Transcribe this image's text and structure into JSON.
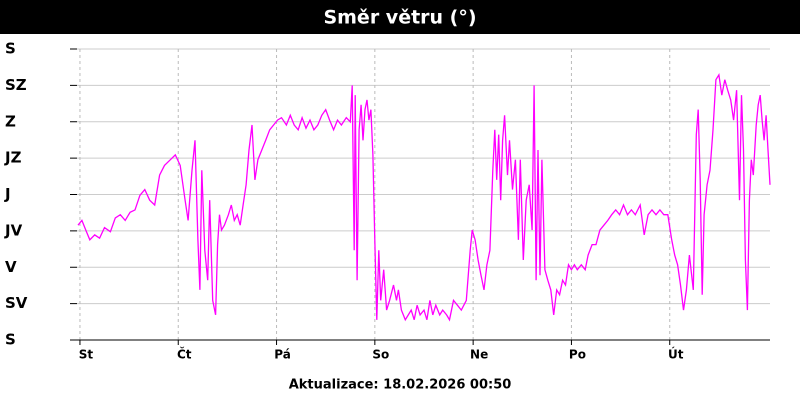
{
  "chart_data": {
    "type": "line",
    "title": "Směr větru (°)",
    "footer": "Aktualizace: 18.02.2026 00:50",
    "xlim": [
      -0.03,
      7.02
    ],
    "xticks": [
      {
        "value": 0,
        "label": "St"
      },
      {
        "value": 1,
        "label": "Čt"
      },
      {
        "value": 2,
        "label": "Pá"
      },
      {
        "value": 3,
        "label": "So"
      },
      {
        "value": 4,
        "label": "Ne"
      },
      {
        "value": 5,
        "label": "Po"
      },
      {
        "value": 6,
        "label": "Út"
      }
    ],
    "ylim": [
      0,
      360
    ],
    "yticks": [
      {
        "value": 0,
        "label": "S"
      },
      {
        "value": 45,
        "label": "SV"
      },
      {
        "value": 90,
        "label": "V"
      },
      {
        "value": 135,
        "label": "JV"
      },
      {
        "value": 180,
        "label": "J"
      },
      {
        "value": 225,
        "label": "JZ"
      },
      {
        "value": 270,
        "label": "Z"
      },
      {
        "value": 315,
        "label": "SZ"
      },
      {
        "value": 360,
        "label": "S"
      }
    ],
    "grid": true,
    "series": [
      {
        "color": "#ff00ff",
        "x": [
          -0.02,
          0.02,
          0.06,
          0.1,
          0.15,
          0.2,
          0.25,
          0.31,
          0.36,
          0.41,
          0.46,
          0.51,
          0.56,
          0.61,
          0.66,
          0.71,
          0.76,
          0.81,
          0.86,
          0.92,
          0.97,
          1.02,
          1.07,
          1.1,
          1.14,
          1.17,
          1.2,
          1.22,
          1.24,
          1.27,
          1.3,
          1.32,
          1.35,
          1.38,
          1.4,
          1.42,
          1.44,
          1.47,
          1.51,
          1.54,
          1.57,
          1.6,
          1.63,
          1.66,
          1.69,
          1.72,
          1.75,
          1.78,
          1.81,
          1.85,
          1.89,
          1.93,
          1.97,
          2.01,
          2.05,
          2.1,
          2.14,
          2.18,
          2.22,
          2.26,
          2.3,
          2.34,
          2.38,
          2.42,
          2.46,
          2.5,
          2.54,
          2.58,
          2.62,
          2.66,
          2.71,
          2.75,
          2.77,
          2.79,
          2.8,
          2.82,
          2.84,
          2.86,
          2.88,
          2.9,
          2.92,
          2.94,
          2.96,
          2.98,
          3.0,
          3.02,
          3.04,
          3.06,
          3.09,
          3.12,
          3.15,
          3.19,
          3.22,
          3.24,
          3.27,
          3.31,
          3.34,
          3.37,
          3.4,
          3.43,
          3.46,
          3.5,
          3.53,
          3.56,
          3.59,
          3.62,
          3.66,
          3.69,
          3.73,
          3.76,
          3.8,
          3.84,
          3.88,
          3.93,
          3.97,
          3.99,
          4.02,
          4.05,
          4.08,
          4.11,
          4.14,
          4.17,
          4.2,
          4.22,
          4.24,
          4.26,
          4.28,
          4.3,
          4.32,
          4.35,
          4.37,
          4.4,
          4.43,
          4.46,
          4.48,
          4.51,
          4.54,
          4.57,
          4.6,
          4.62,
          4.64,
          4.66,
          4.68,
          4.7,
          4.73,
          4.76,
          4.79,
          4.82,
          4.85,
          4.88,
          4.91,
          4.94,
          4.97,
          5.0,
          5.03,
          5.06,
          5.1,
          5.14,
          5.17,
          5.21,
          5.25,
          5.29,
          5.33,
          5.37,
          5.41,
          5.45,
          5.49,
          5.53,
          5.57,
          5.61,
          5.65,
          5.7,
          5.74,
          5.78,
          5.82,
          5.86,
          5.9,
          5.94,
          5.98,
          6.02,
          6.05,
          6.08,
          6.11,
          6.14,
          6.17,
          6.2,
          6.24,
          6.27,
          6.29,
          6.31,
          6.33,
          6.35,
          6.38,
          6.41,
          6.44,
          6.47,
          6.5,
          6.53,
          6.56,
          6.59,
          6.62,
          6.65,
          6.68,
          6.71,
          6.73,
          6.75,
          6.77,
          6.79,
          6.81,
          6.83,
          6.85,
          6.88,
          6.9,
          6.92,
          6.94,
          6.96,
          6.98,
          7.0,
          7.02
        ],
        "values": [
          142,
          148,
          136,
          124,
          130,
          126,
          139,
          134,
          151,
          155,
          148,
          158,
          161,
          179,
          186,
          173,
          167,
          204,
          216,
          223,
          229,
          216,
          173,
          148,
          210,
          247,
          124,
          62,
          210,
          111,
          74,
          173,
          49,
          31,
          118,
          155,
          136,
          142,
          155,
          167,
          148,
          155,
          142,
          167,
          192,
          235,
          266,
          198,
          223,
          235,
          247,
          260,
          266,
          272,
          275,
          266,
          278,
          266,
          260,
          275,
          262,
          272,
          260,
          266,
          278,
          285,
          272,
          260,
          272,
          266,
          275,
          270,
          315,
          111,
          303,
          74,
          260,
          291,
          247,
          285,
          297,
          272,
          285,
          229,
          124,
          25,
          111,
          49,
          87,
          37,
          49,
          68,
          49,
          62,
          37,
          25,
          31,
          37,
          25,
          43,
          31,
          37,
          25,
          49,
          31,
          43,
          31,
          37,
          31,
          25,
          49,
          43,
          37,
          49,
          111,
          136,
          124,
          99,
          80,
          62,
          93,
          111,
          210,
          260,
          198,
          254,
          173,
          247,
          278,
          204,
          247,
          186,
          223,
          124,
          223,
          99,
          173,
          192,
          136,
          315,
          74,
          235,
          80,
          223,
          87,
          74,
          62,
          31,
          62,
          56,
          74,
          68,
          93,
          87,
          93,
          87,
          93,
          87,
          105,
          118,
          118,
          136,
          142,
          148,
          155,
          161,
          155,
          167,
          155,
          161,
          155,
          167,
          130,
          155,
          161,
          155,
          161,
          155,
          155,
          124,
          105,
          93,
          68,
          37,
          62,
          105,
          62,
          254,
          285,
          198,
          56,
          155,
          192,
          210,
          260,
          322,
          328,
          303,
          322,
          309,
          297,
          272,
          309,
          173,
          303,
          235,
          99,
          37,
          173,
          223,
          204,
          266,
          291,
          303,
          272,
          247,
          278,
          235,
          192
        ]
      }
    ]
  }
}
